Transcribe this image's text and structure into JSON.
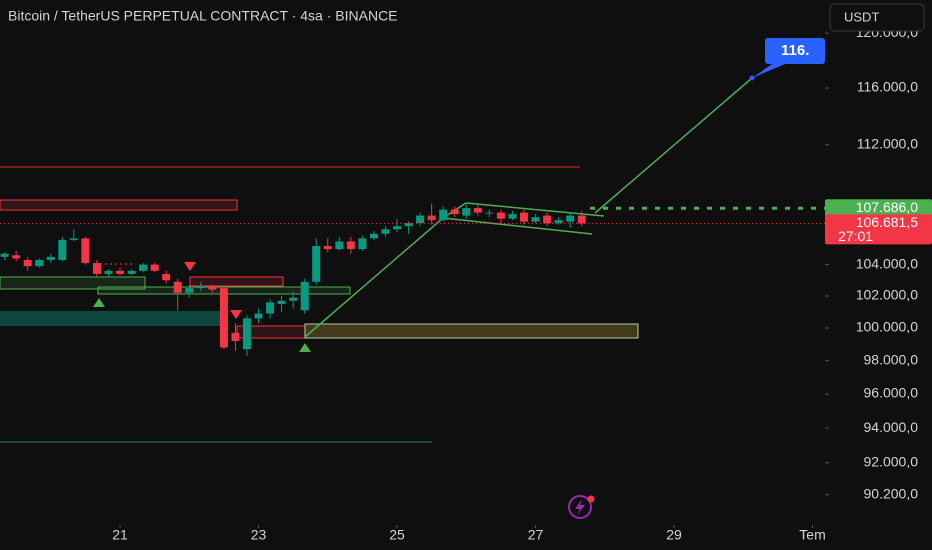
{
  "chart_data": {
    "type": "candlestick",
    "title": "Bitcoin / TetherUS PERPETUAL CONTRACT · 4sa · BINANCE",
    "currency_button": "USDT",
    "up_color": "#089981",
    "down_color": "#f23645",
    "log_scale": true,
    "x": [
      19.333,
      19.5,
      19.667,
      19.833,
      20,
      20.167,
      20.333,
      20.5,
      20.667,
      20.833,
      21,
      21.167,
      21.333,
      21.5,
      21.667,
      21.833,
      22,
      22.167,
      22.333,
      22.5,
      22.667,
      22.833,
      23,
      23.167,
      23.333,
      23.5,
      23.667,
      23.833,
      24,
      24.167,
      24.333,
      24.5,
      24.667,
      24.833,
      25,
      25.167,
      25.333,
      25.5,
      25.667,
      25.833,
      26,
      26.167,
      26.333,
      26.5,
      26.667,
      26.833,
      27,
      27.167,
      27.333,
      27.5,
      27.667
    ],
    "open": [
      104500,
      104600,
      104300,
      103900,
      104300,
      104300,
      105600,
      105700,
      104100,
      103400,
      103600,
      103400,
      103600,
      104000,
      103400,
      102900,
      102200,
      102500,
      102600,
      102500,
      99700,
      98700,
      100600,
      100900,
      101500,
      101700,
      101100,
      102900,
      105200,
      105000,
      105500,
      105000,
      105700,
      106000,
      106300,
      106500,
      106700,
      107200,
      106900,
      107600,
      107200,
      107700,
      107400,
      107400,
      107000,
      107400,
      106800,
      107200,
      106700,
      106800,
      107200
    ],
    "high": [
      104800,
      104900,
      104500,
      104400,
      104700,
      105800,
      106300,
      105800,
      104300,
      103700,
      103800,
      103700,
      104100,
      104100,
      103600,
      103100,
      102700,
      102900,
      102700,
      102600,
      100300,
      100800,
      101200,
      101800,
      102000,
      102300,
      103100,
      105700,
      105700,
      105800,
      105800,
      105900,
      106200,
      106500,
      107000,
      106800,
      107400,
      108000,
      107800,
      107800,
      107900,
      107900,
      107600,
      107600,
      107500,
      107600,
      107300,
      107400,
      107100,
      107400,
      107500
    ],
    "low": [
      104300,
      104200,
      103600,
      103800,
      104100,
      104200,
      105500,
      104000,
      103200,
      103200,
      103300,
      103300,
      103500,
      103500,
      102800,
      101100,
      101900,
      102300,
      102200,
      98700,
      98600,
      98300,
      100300,
      100600,
      101000,
      101200,
      100900,
      102700,
      104800,
      104900,
      104700,
      104900,
      105600,
      105800,
      106100,
      106000,
      106500,
      106600,
      106800,
      107100,
      107000,
      107200,
      107100,
      106700,
      106900,
      106600,
      106700,
      106500,
      106600,
      106400,
      106500
    ],
    "close": [
      104700,
      104400,
      103900,
      104300,
      104500,
      105600,
      105700,
      104100,
      103400,
      103600,
      103400,
      103600,
      104000,
      103600,
      103000,
      102200,
      102500,
      102600,
      102400,
      98800,
      99200,
      100600,
      100900,
      101600,
      101700,
      101900,
      102900,
      105200,
      105000,
      105500,
      105000,
      105700,
      106000,
      106300,
      106500,
      106700,
      107200,
      106900,
      107600,
      107300,
      107700,
      107400,
      107400,
      107000,
      107300,
      106800,
      107100,
      106700,
      106900,
      107200,
      106681.5
    ],
    "xlim": [
      19.267,
      31.18
    ],
    "xticks": [
      21,
      23,
      25,
      27,
      29,
      {
        "value": 31,
        "label": "Tem"
      }
    ],
    "ylim": [
      88530,
      122490
    ],
    "yticks": [
      {
        "value": 120000,
        "label": "120.000,0"
      },
      {
        "value": 116000,
        "label": "116.000,0"
      },
      {
        "value": 112000,
        "label": "112.000,0"
      },
      {
        "value": 104000,
        "label": "104.000,0"
      },
      {
        "value": 102000,
        "label": "102.000,0"
      },
      {
        "value": 100000,
        "label": "100.000,0"
      },
      {
        "value": 98000,
        "label": "98.000,0"
      },
      {
        "value": 96000,
        "label": "96.000,0"
      },
      {
        "value": 94000,
        "label": "94.000,0"
      },
      {
        "value": 92000,
        "label": "92.000,0"
      },
      {
        "value": 90200,
        "label": "90.200,0"
      }
    ],
    "price_line": {
      "value": 107686,
      "label": "107.686,0",
      "color": "#4caf50"
    },
    "last_price": {
      "value": 106681.5,
      "label": "106.681,5",
      "countdown": "27:01",
      "color": "#f23645"
    },
    "target_label": "116."
  }
}
